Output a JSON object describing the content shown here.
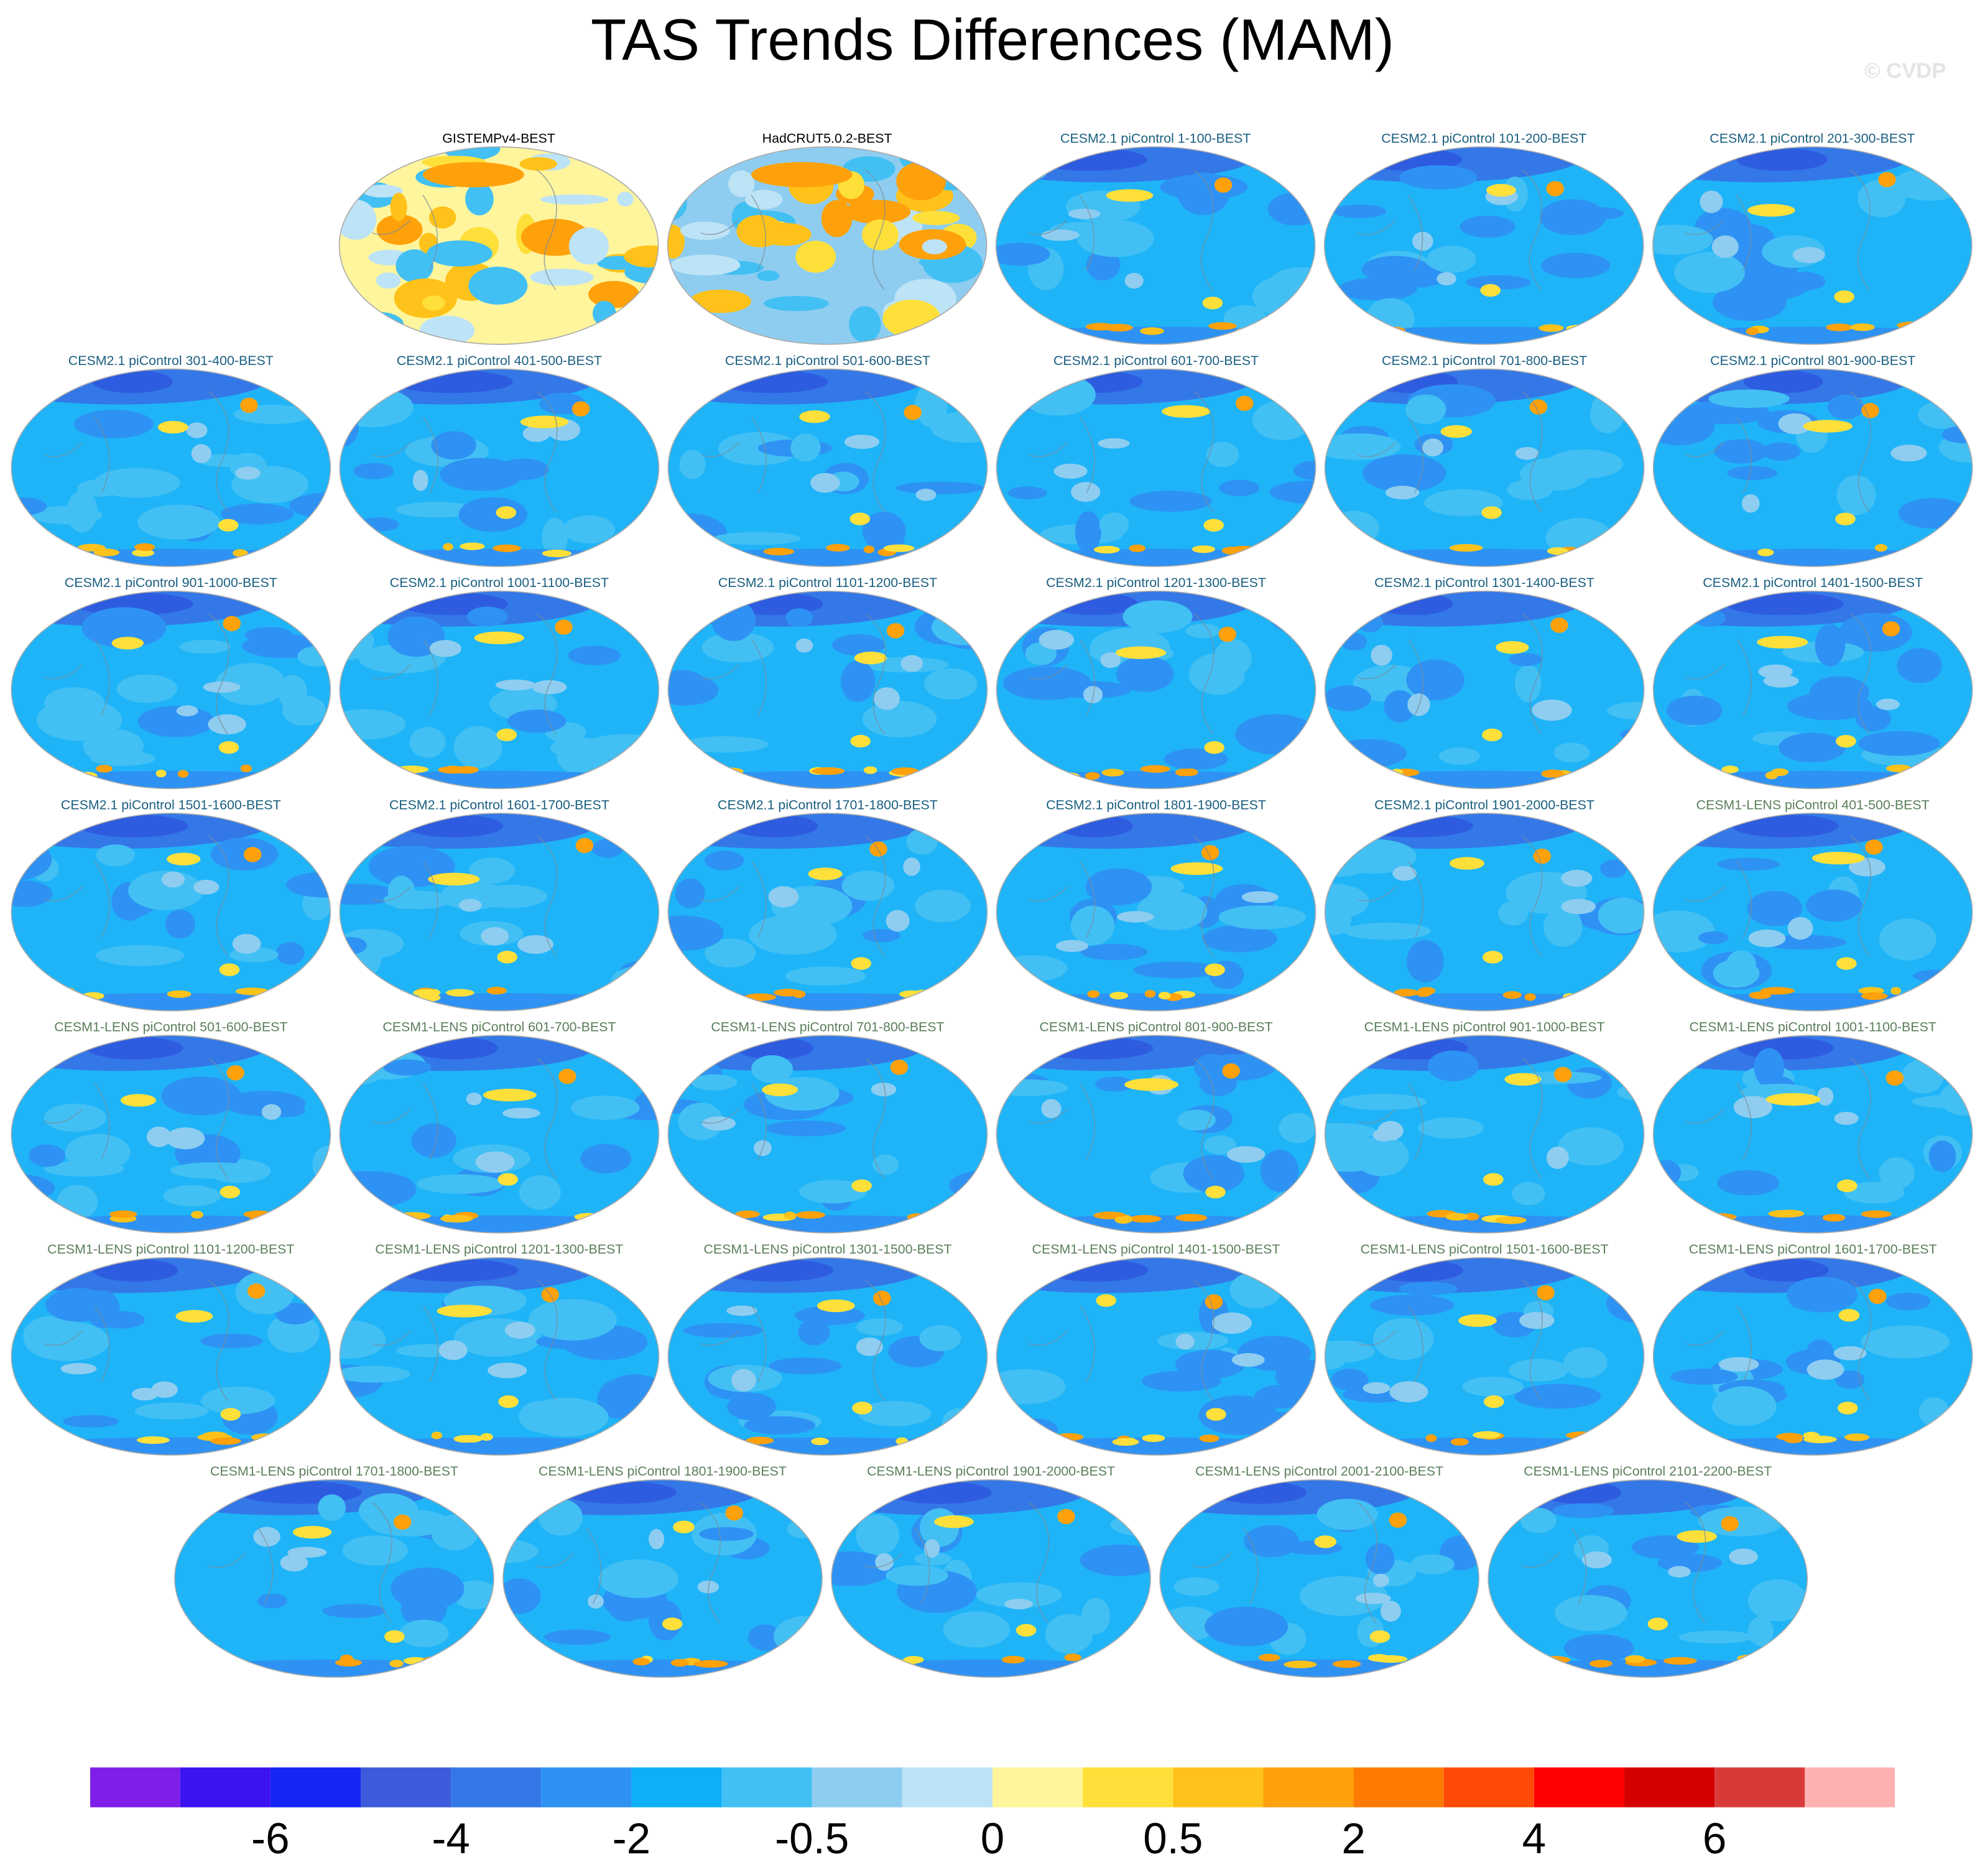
{
  "title": "TAS Trends Differences (MAM)",
  "watermark": "© CVDP",
  "panels": [
    {
      "title": "GISTEMPv4-BEST",
      "color": "#000000"
    },
    {
      "title": "HadCRUT5.0.2-BEST",
      "color": "#000000"
    },
    {
      "title": "CESM2.1 piControl 1-100-BEST",
      "color": "#1a5f80"
    },
    {
      "title": "CESM2.1 piControl 101-200-BEST",
      "color": "#1a5f80"
    },
    {
      "title": "CESM2.1 piControl 201-300-BEST",
      "color": "#1a5f80"
    },
    {
      "title": "CESM2.1 piControl 301-400-BEST",
      "color": "#1a5f80"
    },
    {
      "title": "CESM2.1 piControl 401-500-BEST",
      "color": "#1a5f80"
    },
    {
      "title": "CESM2.1 piControl 501-600-BEST",
      "color": "#1a5f80"
    },
    {
      "title": "CESM2.1 piControl 601-700-BEST",
      "color": "#1a5f80"
    },
    {
      "title": "CESM2.1 piControl 701-800-BEST",
      "color": "#1a5f80"
    },
    {
      "title": "CESM2.1 piControl 801-900-BEST",
      "color": "#1a5f80"
    },
    {
      "title": "CESM2.1 piControl 901-1000-BEST",
      "color": "#1a5f80"
    },
    {
      "title": "CESM2.1 piControl 1001-1100-BEST",
      "color": "#1a5f80"
    },
    {
      "title": "CESM2.1 piControl 1101-1200-BEST",
      "color": "#1a5f80"
    },
    {
      "title": "CESM2.1 piControl 1201-1300-BEST",
      "color": "#1a5f80"
    },
    {
      "title": "CESM2.1 piControl 1301-1400-BEST",
      "color": "#1a5f80"
    },
    {
      "title": "CESM2.1 piControl 1401-1500-BEST",
      "color": "#1a5f80"
    },
    {
      "title": "CESM2.1 piControl 1501-1600-BEST",
      "color": "#1a5f80"
    },
    {
      "title": "CESM2.1 piControl 1601-1700-BEST",
      "color": "#1a5f80"
    },
    {
      "title": "CESM2.1 piControl 1701-1800-BEST",
      "color": "#1a5f80"
    },
    {
      "title": "CESM2.1 piControl 1801-1900-BEST",
      "color": "#1a5f80"
    },
    {
      "title": "CESM2.1 piControl 1901-2000-BEST",
      "color": "#1a5f80"
    },
    {
      "title": "CESM1-LENS piControl 401-500-BEST",
      "color": "#5b7f5b"
    },
    {
      "title": "CESM1-LENS piControl 501-600-BEST",
      "color": "#5b7f5b"
    },
    {
      "title": "CESM1-LENS piControl 601-700-BEST",
      "color": "#5b7f5b"
    },
    {
      "title": "CESM1-LENS piControl 701-800-BEST",
      "color": "#5b7f5b"
    },
    {
      "title": "CESM1-LENS piControl 801-900-BEST",
      "color": "#5b7f5b"
    },
    {
      "title": "CESM1-LENS piControl 901-1000-BEST",
      "color": "#5b7f5b"
    },
    {
      "title": "CESM1-LENS piControl 1001-1100-BEST",
      "color": "#5b7f5b"
    },
    {
      "title": "CESM1-LENS piControl 1101-1200-BEST",
      "color": "#5b7f5b"
    },
    {
      "title": "CESM1-LENS piControl 1201-1300-BEST",
      "color": "#5b7f5b"
    },
    {
      "title": "CESM1-LENS piControl 1301-1500-BEST",
      "color": "#5b7f5b"
    },
    {
      "title": "CESM1-LENS piControl 1401-1500-BEST",
      "color": "#5b7f5b"
    },
    {
      "title": "CESM1-LENS piControl 1501-1600-BEST",
      "color": "#5b7f5b"
    },
    {
      "title": "CESM1-LENS piControl 1601-1700-BEST",
      "color": "#5b7f5b"
    },
    {
      "title": "CESM1-LENS piControl 1701-1800-BEST",
      "color": "#5b7f5b"
    },
    {
      "title": "CESM1-LENS piControl 1801-1900-BEST",
      "color": "#5b7f5b"
    },
    {
      "title": "CESM1-LENS piControl 1901-2000-BEST",
      "color": "#5b7f5b"
    },
    {
      "title": "CESM1-LENS piControl 2001-2100-BEST",
      "color": "#5b7f5b"
    },
    {
      "title": "CESM1-LENS piControl 2101-2200-BEST",
      "color": "#5b7f5b"
    }
  ],
  "colorbar": {
    "colors": [
      "#7f1ee9",
      "#3c12f0",
      "#1426f4",
      "#3c5adc",
      "#3478e8",
      "#2e92f4",
      "#0db0f7",
      "#42c0f4",
      "#8ecdf0",
      "#bde3f6",
      "#fff59d",
      "#ffe03a",
      "#ffc21a",
      "#ffa10a",
      "#ff7a00",
      "#ff4a08",
      "#ff0000",
      "#d40000",
      "#d83a3a",
      "#ffb0b0"
    ],
    "ticks": [
      -6,
      -4,
      -2,
      -0.5,
      0,
      0.5,
      2,
      4,
      6
    ]
  }
}
